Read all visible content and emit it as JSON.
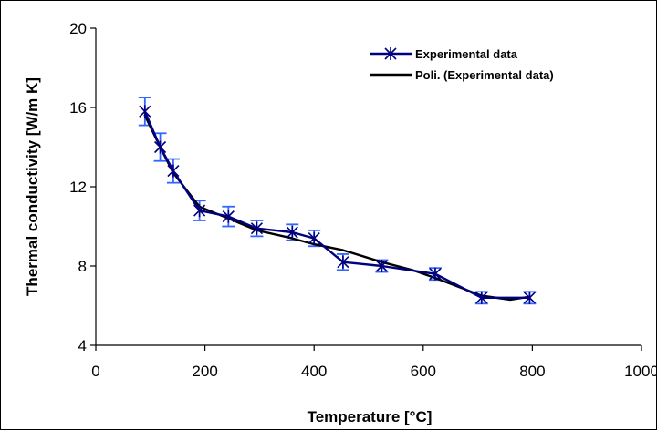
{
  "chart_data": {
    "type": "line",
    "xlabel": "Temperature [°C]",
    "ylabel": "Thermal conductivity [W/m K]",
    "xlim": [
      0,
      1000
    ],
    "ylim": [
      4,
      20
    ],
    "xticks": [
      0,
      200,
      400,
      600,
      800,
      1000
    ],
    "yticks": [
      4,
      8,
      12,
      16,
      20
    ],
    "grid": false,
    "legend_position": "top-right",
    "series": [
      {
        "name": "Experimental data",
        "color": "#000080",
        "marker": "asterisk",
        "x": [
          90,
          118,
          142,
          190,
          243,
          295,
          360,
          400,
          453,
          524,
          622,
          707,
          795
        ],
        "y": [
          15.8,
          14.0,
          12.8,
          10.8,
          10.5,
          9.9,
          9.7,
          9.4,
          8.2,
          8.0,
          7.6,
          6.4,
          6.4
        ],
        "error": [
          0.7,
          0.7,
          0.6,
          0.5,
          0.5,
          0.4,
          0.4,
          0.4,
          0.4,
          0.3,
          0.3,
          0.3,
          0.3
        ],
        "error_color": "#3366ff"
      },
      {
        "name": "Poli. (Experimental data)",
        "color": "#000000",
        "x": [
          90,
          118,
          142,
          190,
          243,
          295,
          360,
          400,
          453,
          524,
          580,
          622,
          707,
          760,
          795
        ],
        "y": [
          15.6,
          14.0,
          12.7,
          11.0,
          10.4,
          9.8,
          9.4,
          9.1,
          8.8,
          8.2,
          7.8,
          7.4,
          6.5,
          6.3,
          6.45
        ]
      }
    ]
  }
}
